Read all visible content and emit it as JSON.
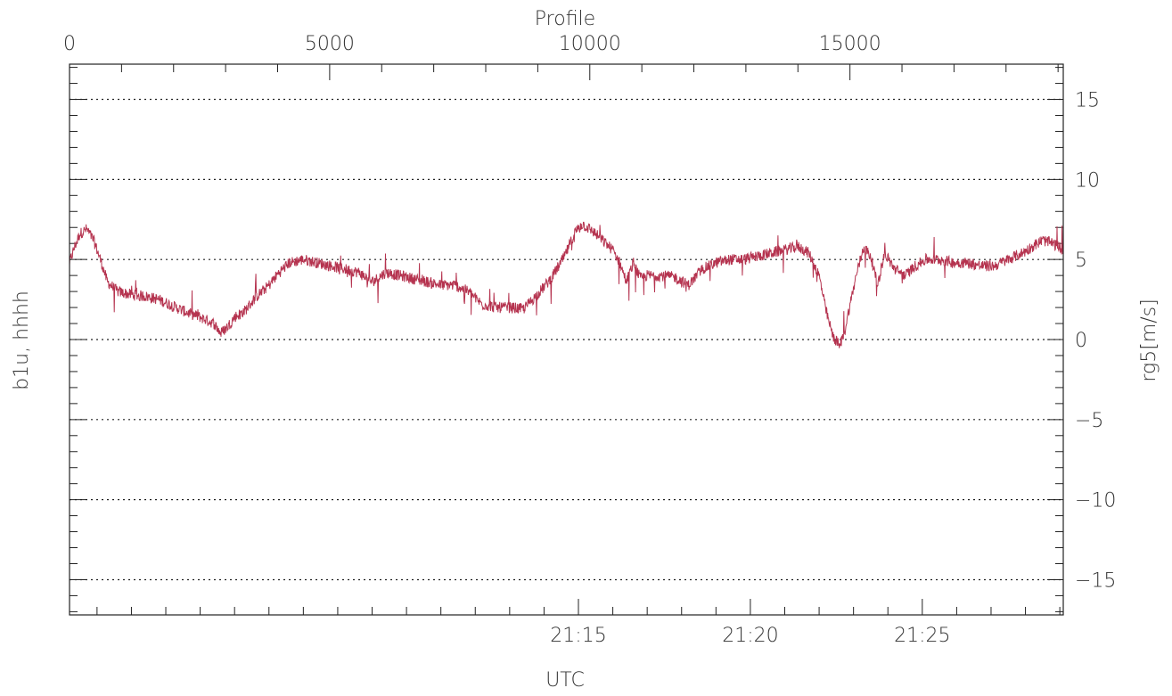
{
  "chart_data": {
    "type": "line",
    "xlabel_bottom": "UTC",
    "xlabel_top": "Profile",
    "ylabel_left": "b1u, hhhh",
    "ylabel_right": "rg5[m/s]",
    "xlim_minutes": [
      600.2,
      629.1
    ],
    "bottom_ticks": [
      {
        "label": "21:15",
        "value": 615
      },
      {
        "label": "21:20",
        "value": 620
      },
      {
        "label": "21:25",
        "value": 625
      }
    ],
    "top_ticks": [
      {
        "label": "0",
        "value": 0
      },
      {
        "label": "5000",
        "value": 5000
      },
      {
        "label": "10000",
        "value": 10000
      },
      {
        "label": "15000",
        "value": 15000
      }
    ],
    "profile_range": [
      0,
      19100
    ],
    "ylim": [
      -17.2,
      17.2
    ],
    "right_ticks": [
      {
        "label": "15",
        "value": 15
      },
      {
        "label": "10",
        "value": 10
      },
      {
        "label": "5",
        "value": 5
      },
      {
        "label": "0",
        "value": 0
      },
      {
        "label": "−5",
        "value": -5
      },
      {
        "label": "−10",
        "value": -10
      },
      {
        "label": "−15",
        "value": -15
      }
    ],
    "grid": "dotted horizontal lines at major y ticks",
    "series": [
      {
        "color": "#b5334f",
        "points": [
          [
            600.2,
            4.8
          ],
          [
            600.35,
            5.8
          ],
          [
            600.5,
            6.6
          ],
          [
            600.7,
            6.9
          ],
          [
            600.9,
            6.2
          ],
          [
            601.1,
            5.0
          ],
          [
            601.3,
            3.6
          ],
          [
            601.6,
            3.0
          ],
          [
            602.0,
            2.8
          ],
          [
            602.4,
            2.7
          ],
          [
            602.8,
            2.5
          ],
          [
            603.2,
            2.1
          ],
          [
            603.6,
            1.7
          ],
          [
            604.0,
            1.4
          ],
          [
            604.4,
            1.0
          ],
          [
            604.6,
            0.4
          ],
          [
            604.8,
            0.8
          ],
          [
            605.0,
            1.4
          ],
          [
            605.3,
            1.8
          ],
          [
            605.6,
            2.6
          ],
          [
            606.0,
            3.4
          ],
          [
            606.3,
            4.2
          ],
          [
            606.6,
            4.8
          ],
          [
            607.0,
            5.0
          ],
          [
            607.4,
            4.8
          ],
          [
            607.8,
            4.6
          ],
          [
            608.2,
            4.4
          ],
          [
            608.6,
            4.2
          ],
          [
            609.0,
            3.6
          ],
          [
            609.4,
            4.2
          ],
          [
            609.8,
            4.0
          ],
          [
            610.2,
            3.8
          ],
          [
            610.6,
            3.6
          ],
          [
            611.0,
            3.4
          ],
          [
            611.4,
            3.4
          ],
          [
            611.8,
            3.0
          ],
          [
            612.2,
            2.2
          ],
          [
            612.6,
            2.0
          ],
          [
            613.0,
            2.0
          ],
          [
            613.4,
            1.9
          ],
          [
            613.8,
            2.8
          ],
          [
            614.2,
            3.8
          ],
          [
            614.6,
            5.2
          ],
          [
            614.9,
            6.7
          ],
          [
            615.1,
            7.2
          ],
          [
            615.4,
            6.8
          ],
          [
            615.7,
            6.2
          ],
          [
            616.0,
            5.6
          ],
          [
            616.2,
            4.8
          ],
          [
            616.4,
            3.6
          ],
          [
            616.6,
            4.8
          ],
          [
            616.8,
            3.8
          ],
          [
            617.0,
            4.0
          ],
          [
            617.4,
            4.0
          ],
          [
            617.8,
            3.9
          ],
          [
            618.2,
            3.4
          ],
          [
            618.6,
            4.4
          ],
          [
            619.0,
            4.8
          ],
          [
            619.4,
            5.0
          ],
          [
            619.8,
            5.0
          ],
          [
            620.2,
            5.2
          ],
          [
            620.6,
            5.4
          ],
          [
            621.0,
            5.6
          ],
          [
            621.4,
            5.8
          ],
          [
            621.7,
            5.4
          ],
          [
            622.0,
            4.0
          ],
          [
            622.2,
            1.8
          ],
          [
            622.4,
            0.2
          ],
          [
            622.6,
            -0.4
          ],
          [
            622.75,
            0.6
          ],
          [
            622.9,
            2.2
          ],
          [
            623.1,
            4.2
          ],
          [
            623.3,
            5.8
          ],
          [
            623.5,
            5.2
          ],
          [
            623.7,
            3.4
          ],
          [
            623.9,
            5.4
          ],
          [
            624.2,
            4.4
          ],
          [
            624.5,
            4.0
          ],
          [
            624.8,
            4.6
          ],
          [
            625.1,
            5.0
          ],
          [
            625.5,
            5.0
          ],
          [
            625.9,
            4.8
          ],
          [
            626.3,
            4.8
          ],
          [
            626.7,
            4.6
          ],
          [
            627.1,
            4.6
          ],
          [
            627.5,
            5.0
          ],
          [
            627.9,
            5.4
          ],
          [
            628.2,
            5.8
          ],
          [
            628.5,
            6.2
          ],
          [
            628.8,
            6.0
          ],
          [
            629.1,
            5.6
          ]
        ]
      }
    ]
  }
}
